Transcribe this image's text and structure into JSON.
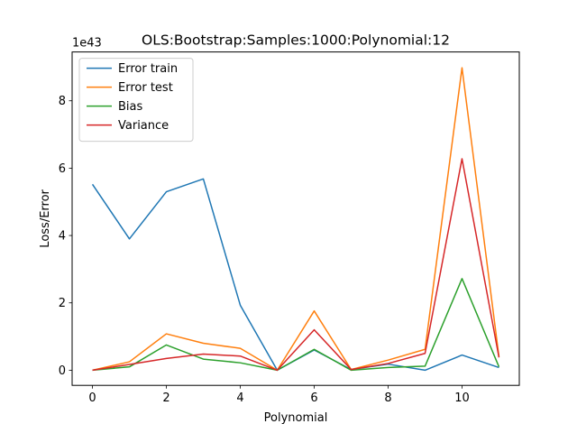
{
  "chart_data": {
    "type": "line",
    "title": "OLS:Bootstrap:Samples:1000:Polynomial:12",
    "xlabel": "Polynomial",
    "ylabel": "Loss/Error",
    "offset_text": "1e43",
    "x": [
      0,
      1,
      2,
      3,
      4,
      5,
      6,
      7,
      8,
      9,
      10,
      11
    ],
    "xlim": [
      -0.55,
      11.55
    ],
    "ylim": [
      -0.45,
      9.45
    ],
    "xticks": [
      0,
      2,
      4,
      6,
      8,
      10
    ],
    "yticks": [
      0,
      2,
      4,
      6,
      8
    ],
    "grid": false,
    "legend": "top-left",
    "series": [
      {
        "name": "Error train",
        "color": "#1f77b4",
        "values": [
          5.52,
          3.9,
          5.3,
          5.68,
          1.93,
          0.0,
          0.6,
          0.02,
          0.18,
          0.0,
          0.45,
          0.08
        ]
      },
      {
        "name": "Error test",
        "color": "#ff7f0e",
        "values": [
          0.0,
          0.25,
          1.08,
          0.8,
          0.65,
          0.0,
          1.76,
          0.02,
          0.3,
          0.62,
          8.98,
          0.4
        ]
      },
      {
        "name": "Bias",
        "color": "#2ca02c",
        "values": [
          0.0,
          0.1,
          0.75,
          0.33,
          0.22,
          0.0,
          0.62,
          0.0,
          0.08,
          0.12,
          2.72,
          0.1
        ]
      },
      {
        "name": "Variance",
        "color": "#d62728",
        "values": [
          0.0,
          0.17,
          0.35,
          0.48,
          0.42,
          0.0,
          1.2,
          0.02,
          0.2,
          0.5,
          6.28,
          0.38
        ]
      }
    ]
  }
}
